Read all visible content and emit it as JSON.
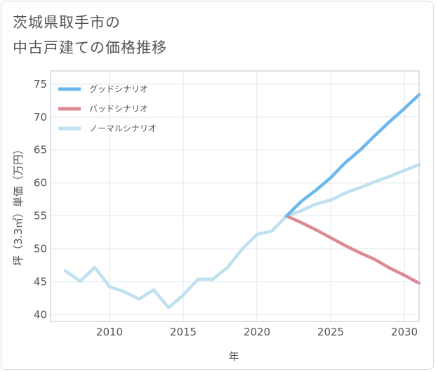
{
  "title_line1": "茨城県取手市の",
  "title_line2": "中古戸建ての価格推移",
  "chart_data": {
    "type": "line",
    "title": "茨城県取手市の中古戸建ての価格推移",
    "xlabel": "年",
    "ylabel": "坪（3.3㎡）単価（万円）",
    "xlim": [
      2006,
      2031
    ],
    "ylim": [
      39,
      77
    ],
    "x_ticks": [
      2010,
      2015,
      2020,
      2025,
      2030
    ],
    "y_ticks": [
      40,
      45,
      50,
      55,
      60,
      65,
      70,
      75
    ],
    "grid": true,
    "legend_position": "top-left",
    "series": [
      {
        "name": "グッドシナリオ",
        "color": "#6cb8ee",
        "x": [
          2022,
          2023,
          2024,
          2025,
          2026,
          2027,
          2028,
          2029,
          2030,
          2031
        ],
        "y": [
          55.0,
          57.2,
          58.9,
          60.8,
          63.1,
          65.0,
          67.2,
          69.3,
          71.3,
          73.4
        ]
      },
      {
        "name": "バッドシナリオ",
        "color": "#dd8a93",
        "x": [
          2022,
          2023,
          2024,
          2025,
          2026,
          2027,
          2028,
          2029,
          2030,
          2031
        ],
        "y": [
          55.0,
          54.0,
          52.9,
          51.7,
          50.5,
          49.4,
          48.4,
          47.1,
          46.0,
          44.8
        ]
      },
      {
        "name": "ノーマルシナリオ",
        "color": "#bfe0ee",
        "x": [
          2007,
          2008,
          2009,
          2010,
          2011,
          2012,
          2013,
          2014,
          2015,
          2016,
          2017,
          2018,
          2019,
          2020,
          2021,
          2022,
          2023,
          2024,
          2025,
          2026,
          2027,
          2028,
          2029,
          2030,
          2031
        ],
        "y": [
          46.7,
          45.1,
          47.2,
          44.3,
          43.5,
          42.4,
          43.8,
          41.1,
          43.0,
          45.4,
          45.4,
          47.2,
          50.0,
          52.2,
          52.7,
          55.0,
          55.8,
          56.8,
          57.4,
          58.5,
          59.3,
          60.2,
          61.0,
          61.9,
          62.8
        ]
      }
    ]
  }
}
